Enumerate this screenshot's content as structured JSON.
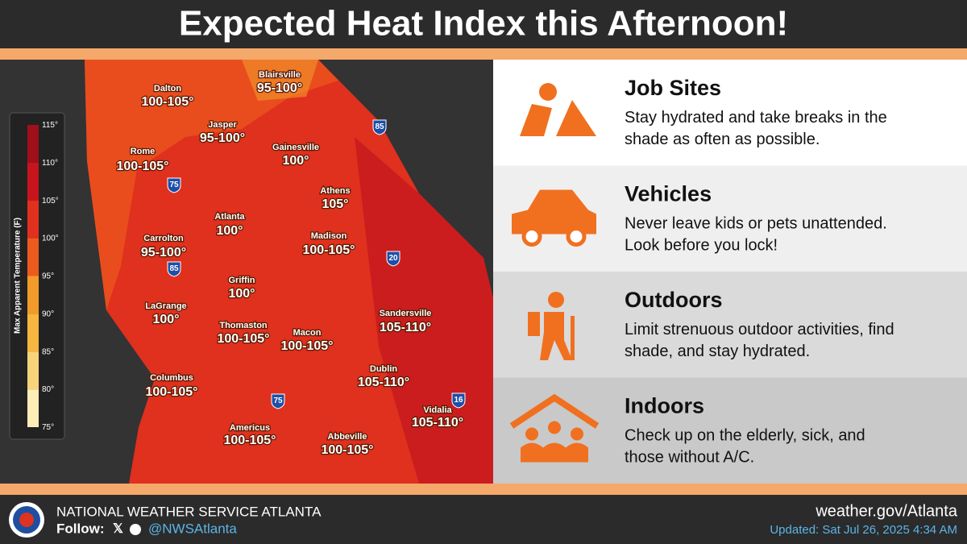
{
  "header": {
    "title": "Expected Heat Index this Afternoon!"
  },
  "legend": {
    "title": "Max Apparent Temperature (F)",
    "ticks": [
      "115°",
      "110°",
      "105°",
      "100°",
      "95°",
      "90°",
      "85°",
      "80°",
      "75°"
    ]
  },
  "map": {
    "cities": [
      {
        "name": "Blairsville",
        "value": "95-100°"
      },
      {
        "name": "Dalton",
        "value": "100-105°"
      },
      {
        "name": "Jasper",
        "value": "95-100°"
      },
      {
        "name": "Gainesville",
        "value": "100°"
      },
      {
        "name": "Rome",
        "value": "100-105°"
      },
      {
        "name": "Athens",
        "value": "105°"
      },
      {
        "name": "Atlanta",
        "value": "100°"
      },
      {
        "name": "Carrolton",
        "value": "95-100°"
      },
      {
        "name": "Madison",
        "value": "100-105°"
      },
      {
        "name": "Griffin",
        "value": "100°"
      },
      {
        "name": "LaGrange",
        "value": "100°"
      },
      {
        "name": "Thomaston",
        "value": "100-105°"
      },
      {
        "name": "Macon",
        "value": "100-105°"
      },
      {
        "name": "Sandersville",
        "value": "105-110°"
      },
      {
        "name": "Dublin",
        "value": "105-110°"
      },
      {
        "name": "Columbus",
        "value": "100-105°"
      },
      {
        "name": "Vidalia",
        "value": "105-110°"
      },
      {
        "name": "Americus",
        "value": "100-105°"
      },
      {
        "name": "Abbeville",
        "value": "100-105°"
      }
    ],
    "highways": [
      "85",
      "75",
      "85",
      "20",
      "75",
      "16"
    ]
  },
  "panels": [
    {
      "title": "Job Sites",
      "lines": [
        "Stay hydrated and take breaks in the",
        "shade as often as possible."
      ]
    },
    {
      "title": "Vehicles",
      "lines": [
        "Never leave kids or pets unattended.",
        "Look before you lock!"
      ]
    },
    {
      "title": "Outdoors",
      "lines": [
        "Limit strenuous outdoor activities, find",
        "shade, and stay hydrated."
      ]
    },
    {
      "title": "Indoors",
      "lines": [
        "Check up on the elderly, sick, and",
        "those without A/C."
      ]
    }
  ],
  "footer": {
    "office": "NATIONAL WEATHER SERVICE ATLANTA",
    "follow": "Follow:",
    "handle": "@NWSAtlanta",
    "website": "weather.gov/Atlanta",
    "updated": "Updated: Sat Jul 26, 2025 4:34 AM"
  }
}
